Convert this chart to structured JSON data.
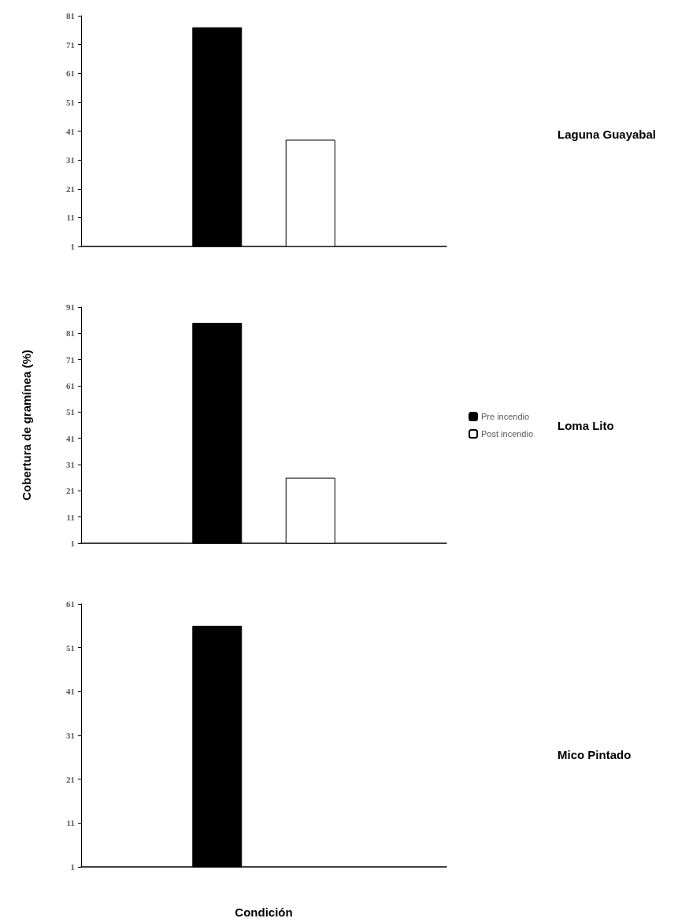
{
  "chart_data": [
    {
      "type": "bar",
      "annotations": [
        "Laguna Guayabal"
      ],
      "categories": [
        null
      ],
      "tick_labels": "y",
      "ylim": [
        1,
        81
      ],
      "yticks": [
        1,
        11,
        21,
        31,
        41,
        51,
        61,
        71,
        81
      ],
      "series": [
        {
          "color": "#000000",
          "values": [
            77
          ]
        },
        {
          "color": "#ffffff",
          "values": [
            38
          ]
        }
      ]
    },
    {
      "type": "bar",
      "annotations": [
        "Loma Lito"
      ],
      "ylabel": "Cobertura de gramínea (%)",
      "categories": [
        null
      ],
      "tick_labels": "y",
      "ylim": [
        1,
        91
      ],
      "yticks": [
        1,
        11,
        21,
        31,
        41,
        51,
        61,
        71,
        81,
        91
      ],
      "legend": "right",
      "series": [
        {
          "name": "Pre incendio",
          "color": "#000000",
          "values": [
            85
          ]
        },
        {
          "name": "Post incendio",
          "color": "#ffffff",
          "values": [
            26
          ]
        }
      ]
    },
    {
      "type": "bar",
      "annotations": [
        "Mico Pintado"
      ],
      "xlabel": "Condición",
      "categories": [
        null
      ],
      "tick_labels": "y",
      "ylim": [
        1,
        61
      ],
      "yticks": [
        1,
        11,
        21,
        31,
        41,
        51,
        61
      ],
      "series": [
        {
          "color": "#000000",
          "values": [
            56
          ]
        },
        {
          "color": "#ffffff",
          "values": [
            null
          ]
        }
      ]
    }
  ]
}
